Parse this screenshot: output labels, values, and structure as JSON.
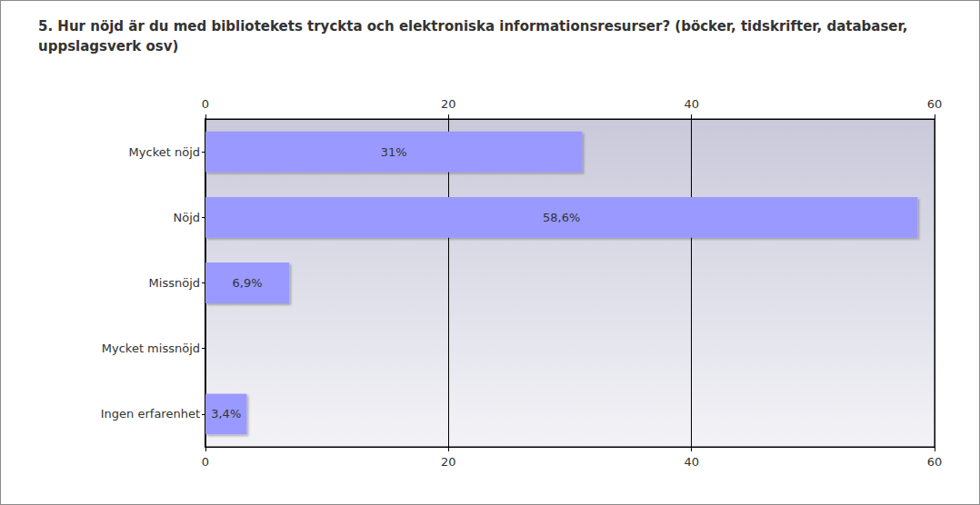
{
  "chart_data": {
    "type": "bar",
    "orientation": "horizontal",
    "title": "5. Hur nöjd är du med bibliotekets tryckta och elektroniska informationsresurser? (böcker, tidskrifter, databaser, uppslagsverk osv)",
    "categories": [
      "Mycket nöjd",
      "Nöjd",
      "Missnöjd",
      "Mycket missnöjd",
      "Ingen erfarenhet"
    ],
    "values": [
      31,
      58.6,
      6.9,
      null,
      3.4
    ],
    "value_labels": [
      "31%",
      "58,6%",
      "6,9%",
      null,
      "3,4%"
    ],
    "color": "#9999ff",
    "xlim": [
      0,
      60
    ],
    "xticks": [
      0,
      20,
      40,
      60
    ],
    "grid": true,
    "data_labels": true
  }
}
